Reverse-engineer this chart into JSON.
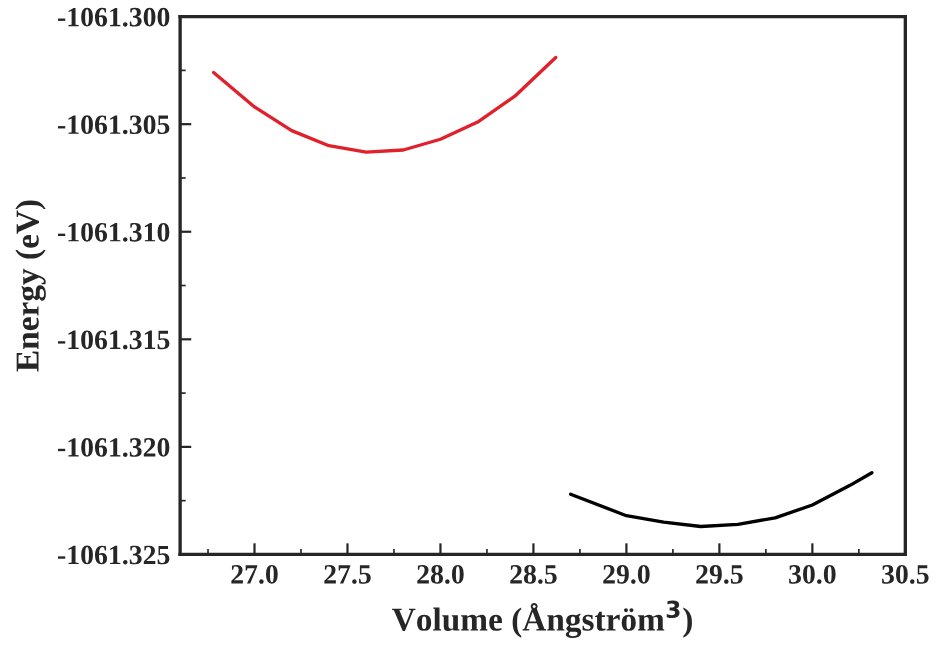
{
  "chart_data": {
    "type": "line",
    "xlabel": "Volume (Ångström$^{3}$)",
    "ylabel": "Energy (eV)",
    "xlim": [
      26.6,
      30.5
    ],
    "xticks": [
      {
        "value": 27.0,
        "label": "27.0"
      },
      {
        "value": 27.5,
        "label": "27.5"
      },
      {
        "value": 28.0,
        "label": "28.0"
      },
      {
        "value": 28.5,
        "label": "28.5"
      },
      {
        "value": 29.0,
        "label": "29.0"
      },
      {
        "value": 29.5,
        "label": "29.5"
      },
      {
        "value": 30.0,
        "label": "30.0"
      },
      {
        "value": 30.5,
        "label": "30.5"
      }
    ],
    "ylim": [
      -1061.325,
      -1061.3
    ],
    "yticks": [
      {
        "value": -1061.325,
        "label": "-1061.325"
      },
      {
        "value": -1061.32,
        "label": "-1061.320"
      },
      {
        "value": -1061.315,
        "label": "-1061.315"
      },
      {
        "value": -1061.31,
        "label": "-1061.310"
      },
      {
        "value": -1061.305,
        "label": "-1061.305"
      },
      {
        "value": -1061.3,
        "label": "-1061.300"
      }
    ],
    "grid": false,
    "marker": "none",
    "line_style": "solid",
    "series": [
      {
        "color": "#e0202a",
        "x": [
          26.78,
          27.0,
          27.2,
          27.4,
          27.6,
          27.8,
          28.0,
          28.2,
          28.4,
          28.62
        ],
        "values": [
          -1061.3026,
          -1061.3042,
          -1061.3053,
          -1061.306,
          -1061.3063,
          -1061.3062,
          -1061.3057,
          -1061.3049,
          -1061.3037,
          -1061.3019
        ]
      },
      {
        "color": "#000000",
        "x": [
          28.7,
          29.0,
          29.2,
          29.4,
          29.6,
          29.8,
          30.0,
          30.2,
          30.32
        ],
        "values": [
          -1061.3222,
          -1061.3232,
          -1061.3235,
          -1061.3237,
          -1061.3236,
          -1061.3233,
          -1061.3227,
          -1061.3218,
          -1061.3212
        ]
      }
    ]
  }
}
